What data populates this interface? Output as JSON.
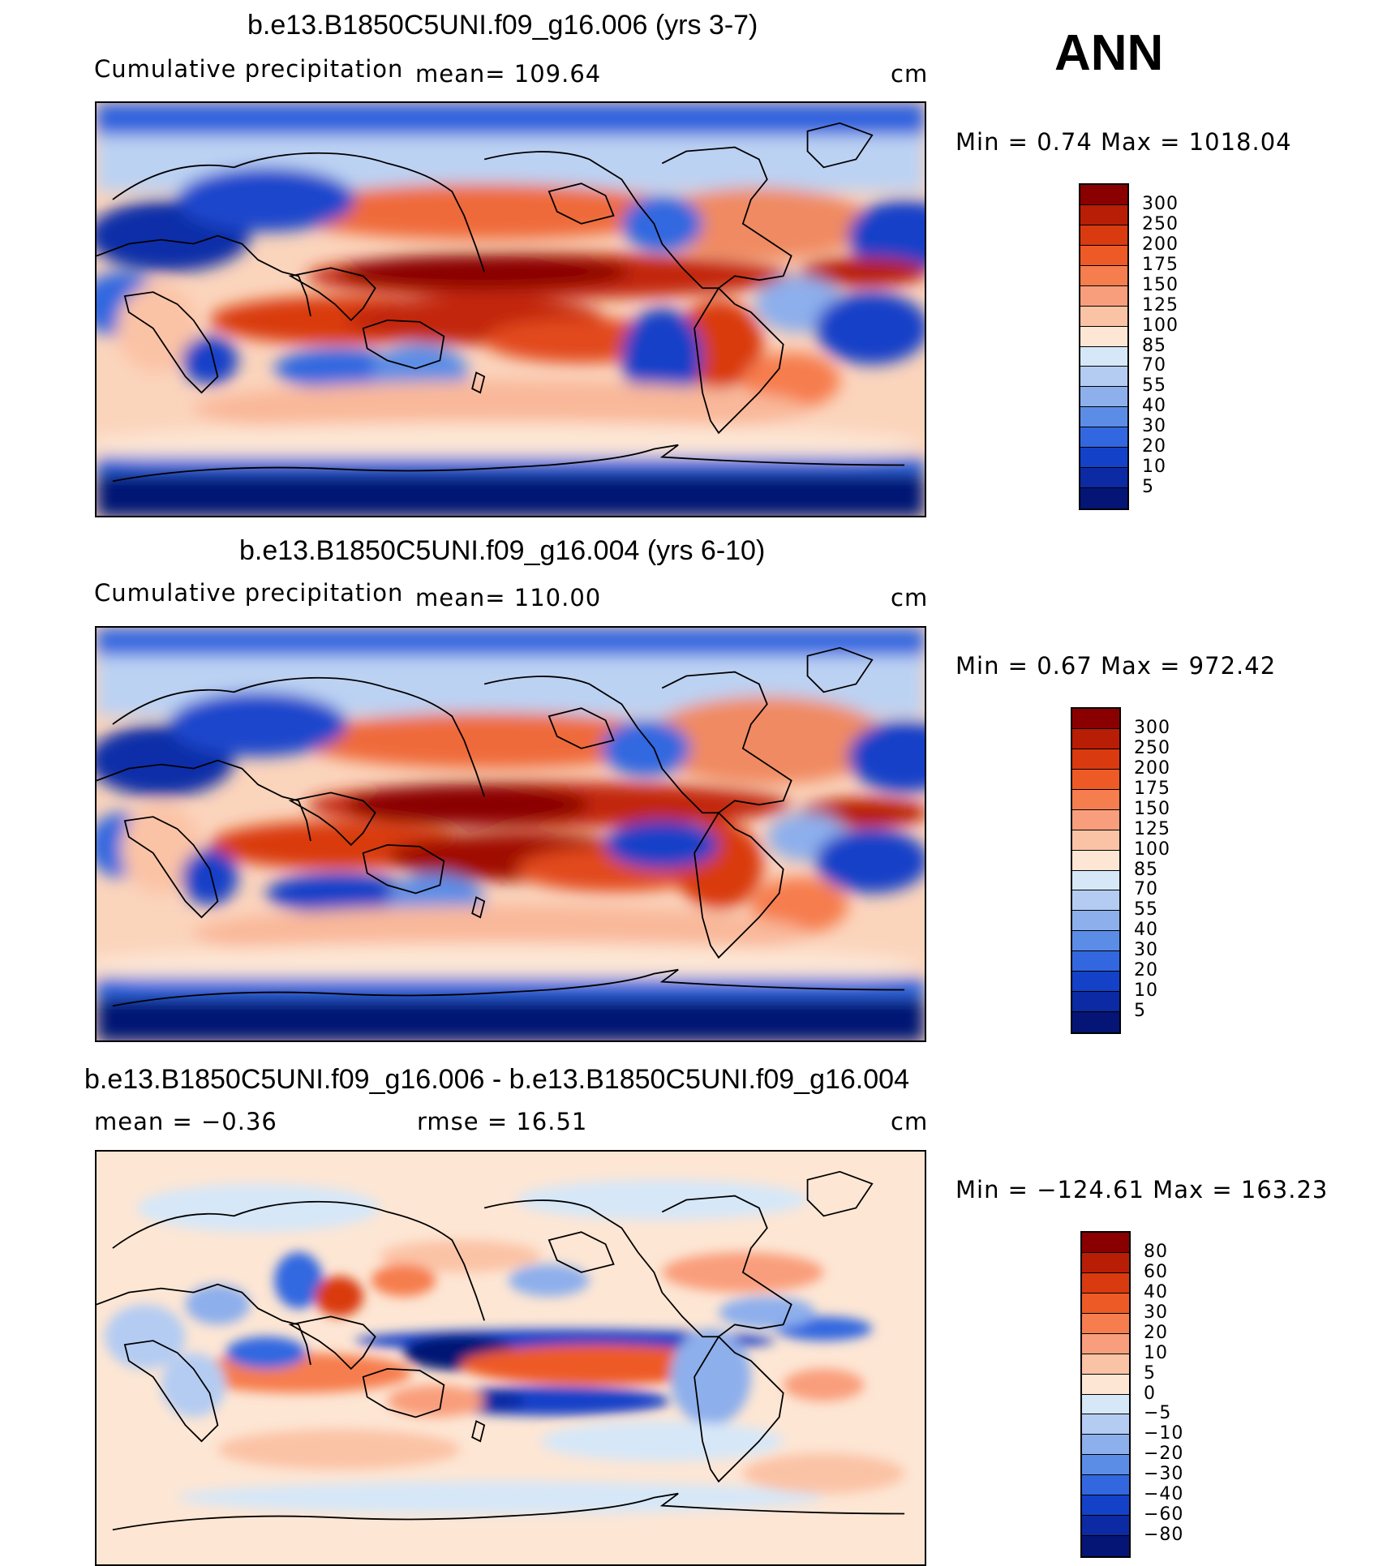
{
  "season": "ANN",
  "panels": [
    {
      "title": "b.e13.B1850C5UNI.f09_g16.006 (yrs 3-7)",
      "left_label": "Cumulative  precipitation",
      "mid_label": "mean=  109.64",
      "unit": "cm",
      "minmax": "Min  =      0.74  Max  =  1018.04",
      "colorbar": {
        "labels": [
          "300",
          "250",
          "200",
          "175",
          "150",
          "125",
          "100",
          "85",
          "70",
          "55",
          "40",
          "30",
          "20",
          "10",
          "5"
        ],
        "colors": [
          "#8a0000",
          "#b81d05",
          "#d93a10",
          "#ee5a26",
          "#f67d4e",
          "#f99e7c",
          "#fbc3a6",
          "#fde6d4",
          "#d6e7f8",
          "#b4ccf2",
          "#8dafec",
          "#5c8de6",
          "#3267e0",
          "#1341c8",
          "#0b2aa3",
          "#041575"
        ]
      }
    },
    {
      "title": "b.e13.B1850C5UNI.f09_g16.004 (yrs 6-10)",
      "left_label": "Cumulative  precipitation",
      "mid_label": "mean=  110.00",
      "unit": "cm",
      "minmax": "Min  =      0.67  Max  =  972.42",
      "colorbar": {
        "labels": [
          "300",
          "250",
          "200",
          "175",
          "150",
          "125",
          "100",
          "85",
          "70",
          "55",
          "40",
          "30",
          "20",
          "10",
          "5"
        ],
        "colors": [
          "#8a0000",
          "#b81d05",
          "#d93a10",
          "#ee5a26",
          "#f67d4e",
          "#f99e7c",
          "#fbc3a6",
          "#fde6d4",
          "#d6e7f8",
          "#b4ccf2",
          "#8dafec",
          "#5c8de6",
          "#3267e0",
          "#1341c8",
          "#0b2aa3",
          "#041575"
        ]
      }
    },
    {
      "title": "b.e13.B1850C5UNI.f09_g16.006 - b.e13.B1850C5UNI.f09_g16.004",
      "left_label": "mean  =    −0.36",
      "mid_label": "rmse  =    16.51",
      "unit": "cm",
      "minmax": "Min  =  −124.61  Max  =  163.23",
      "colorbar": {
        "labels": [
          "80",
          "60",
          "40",
          "30",
          "20",
          "10",
          "5",
          "0",
          "−5",
          "−10",
          "−20",
          "−30",
          "−40",
          "−60",
          "−80"
        ],
        "colors": [
          "#8a0000",
          "#b81d05",
          "#d93a10",
          "#ee5a26",
          "#f67d4e",
          "#f99e7c",
          "#fbc3a6",
          "#fde6d4",
          "#d6e7f8",
          "#b4ccf2",
          "#8dafec",
          "#5c8de6",
          "#3267e0",
          "#1341c8",
          "#0b2aa3",
          "#041575"
        ]
      }
    }
  ]
}
